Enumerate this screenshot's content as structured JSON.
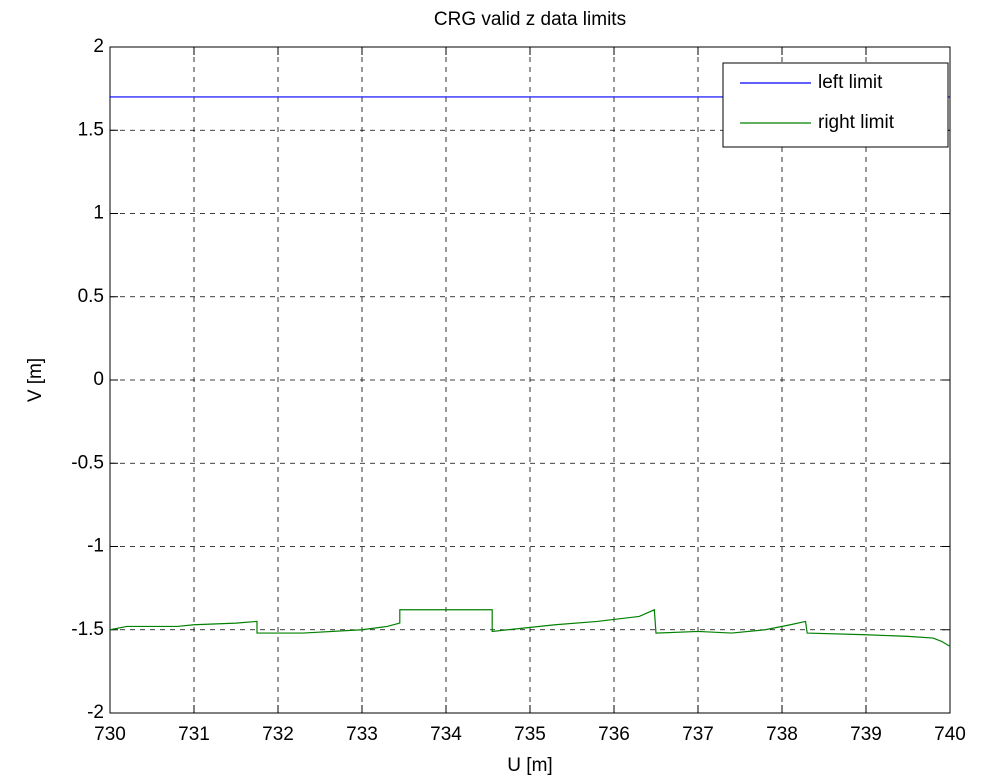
{
  "chart_data": {
    "type": "line",
    "title": "CRG valid z data limits",
    "x_label": "U [m]",
    "y_label": "V [m]",
    "xlim": [
      730,
      740
    ],
    "xticks": [
      730,
      731,
      732,
      733,
      734,
      735,
      736,
      737,
      738,
      739,
      740
    ],
    "ylim": [
      -2,
      2
    ],
    "yticks": [
      -2,
      -1.5,
      -1,
      -0.5,
      0,
      0.5,
      1,
      1.5,
      2
    ],
    "grid": true,
    "legend": "upper right",
    "series": [
      {
        "name": "left limit",
        "color": "#0000ff",
        "x": [
          730,
          740
        ],
        "values": [
          1.7,
          1.7
        ]
      },
      {
        "name": "right limit",
        "color": "#008000",
        "x": [
          730,
          730.2,
          730.8,
          731.0,
          731.5,
          731.75,
          731.75,
          732.3,
          733.0,
          733.3,
          733.45,
          733.45,
          734.55,
          734.55,
          735.3,
          735.8,
          736.3,
          736.48,
          736.5,
          737.0,
          737.4,
          737.8,
          738.1,
          738.28,
          738.3,
          739.0,
          739.5,
          739.8,
          739.9,
          740
        ],
        "values": [
          -1.5,
          -1.48,
          -1.48,
          -1.47,
          -1.46,
          -1.45,
          -1.52,
          -1.52,
          -1.5,
          -1.48,
          -1.46,
          -1.38,
          -1.38,
          -1.51,
          -1.47,
          -1.45,
          -1.42,
          -1.38,
          -1.52,
          -1.51,
          -1.52,
          -1.5,
          -1.47,
          -1.45,
          -1.52,
          -1.53,
          -1.54,
          -1.55,
          -1.57,
          -1.6
        ]
      }
    ]
  }
}
